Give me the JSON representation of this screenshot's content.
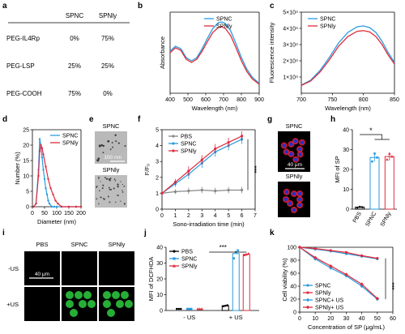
{
  "colors": {
    "spnc": "#2b9be0",
    "spnly": "#e02b3c",
    "pbs": "#888888",
    "black": "#000000",
    "ros_green": "#2ecc40",
    "nucleus_blue": "#2030d0",
    "cell_red": "#e0203a"
  },
  "panels": {
    "a": {
      "letter": "a",
      "header": [
        "",
        "SPNC",
        "SPNly"
      ],
      "rows": [
        {
          "name": "PEG-IL4Rp",
          "spnc": "0%",
          "spnly": "75%"
        },
        {
          "name": "PEG-LSP",
          "spnc": "25%",
          "spnly": "25%"
        },
        {
          "name": "PEG-COOH",
          "spnc": "75%",
          "spnly": "0%"
        }
      ]
    },
    "e": {
      "letter": "e",
      "label_top": "SPNC",
      "label_bottom": "SPNly",
      "scalebar": "100 nm"
    },
    "g": {
      "letter": "g",
      "label_top": "SPNC",
      "label_bottom": "SPNly",
      "scalebar": "40 μm"
    },
    "i": {
      "letter": "i",
      "cols": [
        "PBS",
        "SPNC",
        "SPNly"
      ],
      "rows": [
        "-US",
        "+US"
      ],
      "scalebar": "40 μm"
    }
  },
  "chart_data": [
    {
      "id": "b",
      "letter": "b",
      "type": "line",
      "xlabel": "Wavelength (nm)",
      "ylabel": "Absorbance",
      "xlim": [
        400,
        900
      ],
      "xticks": [
        400,
        500,
        600,
        700,
        800,
        900
      ],
      "ylim": [
        0,
        1
      ],
      "legend": "top-right",
      "series": [
        {
          "name": "SPNC",
          "color": "spnc",
          "x": [
            400,
            430,
            460,
            490,
            520,
            550,
            580,
            610,
            640,
            670,
            690,
            710,
            740,
            770,
            800,
            830,
            860,
            900
          ],
          "y": [
            0.52,
            0.58,
            0.55,
            0.44,
            0.4,
            0.44,
            0.55,
            0.68,
            0.8,
            0.87,
            0.88,
            0.86,
            0.77,
            0.61,
            0.44,
            0.3,
            0.2,
            0.12
          ]
        },
        {
          "name": "SPNly",
          "color": "spnly",
          "x": [
            400,
            430,
            460,
            490,
            520,
            550,
            580,
            610,
            640,
            670,
            690,
            710,
            740,
            770,
            800,
            830,
            860,
            900
          ],
          "y": [
            0.5,
            0.56,
            0.53,
            0.42,
            0.38,
            0.42,
            0.52,
            0.64,
            0.75,
            0.81,
            0.82,
            0.8,
            0.71,
            0.56,
            0.4,
            0.27,
            0.18,
            0.11
          ]
        }
      ]
    },
    {
      "id": "c",
      "letter": "c",
      "type": "line",
      "xlabel": "Wavelength (nm)",
      "ylabel": "Fluorescence intensity",
      "xlim": [
        700,
        850
      ],
      "xticks": [
        700,
        750,
        800,
        850
      ],
      "ylim": [
        0,
        50000
      ],
      "yticks": [
        10000,
        20000,
        30000,
        40000,
        50000
      ],
      "yticklabels": [
        "1×10⁴",
        "2×10⁴",
        "3×10⁴",
        "4×10⁴",
        "5×10⁴"
      ],
      "legend": "top-left",
      "series": [
        {
          "name": "SPNC",
          "color": "spnc",
          "x": [
            700,
            715,
            730,
            745,
            760,
            775,
            790,
            800,
            810,
            820,
            830,
            840,
            850
          ],
          "y": [
            5000,
            8000,
            14000,
            22000,
            31000,
            37500,
            41000,
            41500,
            40500,
            37500,
            32000,
            25000,
            19000
          ]
        },
        {
          "name": "SPNly",
          "color": "spnly",
          "x": [
            700,
            715,
            730,
            745,
            760,
            775,
            790,
            800,
            810,
            820,
            830,
            840,
            850
          ],
          "y": [
            4800,
            7500,
            13000,
            20500,
            29000,
            35000,
            38200,
            38600,
            37800,
            35000,
            30000,
            23500,
            18000
          ]
        }
      ]
    },
    {
      "id": "d",
      "letter": "d",
      "type": "line",
      "xlabel": "Diameter (nm)",
      "ylabel": "Number (%)",
      "xlim": [
        0,
        200
      ],
      "xticks": [
        0,
        50,
        100,
        150,
        200
      ],
      "ylim": [
        0,
        25
      ],
      "yticks": [
        0,
        5,
        10,
        15,
        20,
        25
      ],
      "legend": "top-right",
      "series": [
        {
          "name": "SPNC",
          "color": "spnc",
          "x": [
            5,
            15,
            25,
            30,
            35,
            40,
            45,
            50,
            55,
            60,
            65,
            70,
            80,
            90,
            100,
            120,
            150,
            180,
            200
          ],
          "y": [
            0,
            1,
            12,
            22,
            20,
            16,
            12,
            9,
            6,
            4,
            2,
            1,
            0,
            0,
            0,
            0,
            0,
            0,
            0
          ]
        },
        {
          "name": "SPNly",
          "color": "spnly",
          "x": [
            5,
            15,
            25,
            30,
            35,
            40,
            45,
            55,
            65,
            75,
            85,
            95,
            105,
            120,
            150,
            180,
            200
          ],
          "y": [
            0,
            1,
            10,
            18,
            20,
            19,
            17,
            13,
            9,
            6,
            4,
            2,
            1,
            0,
            0,
            0,
            0
          ]
        }
      ]
    },
    {
      "id": "f",
      "letter": "f",
      "type": "line",
      "xlabel": "Sono-irradiation time (min)",
      "ylabel": "F/F₀",
      "xlim": [
        0,
        7
      ],
      "xticks": [
        0,
        1,
        2,
        3,
        4,
        5,
        6,
        7
      ],
      "ylim": [
        0,
        5
      ],
      "yticks": [
        0,
        1,
        2,
        3,
        4,
        5
      ],
      "legend": "top-left",
      "annotation": "***",
      "series": [
        {
          "name": "PBS",
          "color": "pbs",
          "x": [
            0,
            1,
            2,
            3,
            4,
            5,
            6
          ],
          "y": [
            1.0,
            1.1,
            1.15,
            1.2,
            1.15,
            1.2,
            1.2
          ],
          "err": [
            0.1,
            0.15,
            0.2,
            0.2,
            0.2,
            0.2,
            0.2
          ]
        },
        {
          "name": "SPNC",
          "color": "spnc",
          "x": [
            0,
            1,
            2,
            3,
            4,
            5,
            6
          ],
          "y": [
            1.0,
            1.6,
            2.2,
            2.9,
            3.6,
            4.0,
            4.4
          ],
          "err": [
            0.1,
            0.2,
            0.3,
            0.3,
            0.3,
            0.3,
            0.3
          ]
        },
        {
          "name": "SPNly",
          "color": "spnly",
          "x": [
            0,
            1,
            2,
            3,
            4,
            5,
            6
          ],
          "y": [
            1.0,
            1.7,
            2.4,
            3.1,
            3.8,
            4.2,
            4.6
          ],
          "err": [
            0.1,
            0.2,
            0.3,
            0.3,
            0.3,
            0.3,
            0.3
          ]
        }
      ]
    },
    {
      "id": "h",
      "letter": "h",
      "type": "bar",
      "ylabel": "MFI of SP",
      "ylim": [
        0,
        40
      ],
      "yticks": [
        0,
        10,
        20,
        30,
        40
      ],
      "categories": [
        "PBS",
        "SPNC",
        "SPNly"
      ],
      "values": [
        1,
        26,
        26.5
      ],
      "err": [
        0.5,
        2,
        2
      ],
      "points": [
        [
          0.8,
          1.2,
          1.0
        ],
        [
          24,
          28,
          26
        ],
        [
          25,
          28,
          26.5
        ]
      ],
      "colors": [
        "black",
        "spnc",
        "spnly"
      ],
      "annotation": "*"
    },
    {
      "id": "j",
      "letter": "j",
      "type": "scatter",
      "ylabel": "MFI of DCFHDA",
      "ylim": [
        0,
        40
      ],
      "yticks": [
        0,
        10,
        20,
        30,
        40
      ],
      "categories": [
        "- US",
        "+ US"
      ],
      "legend": "top-left",
      "annotation": "***",
      "series": [
        {
          "name": "PBS",
          "color": "black",
          "marker": "circle",
          "values": [
            1,
            3
          ],
          "points": [
            [
              1,
              1,
              1
            ],
            [
              2.7,
              3,
              3.3
            ]
          ]
        },
        {
          "name": "SPNC",
          "color": "spnc",
          "marker": "square",
          "values": [
            1,
            36
          ],
          "points": [
            [
              1,
              1,
              1
            ],
            [
              33,
              37,
              38
            ]
          ]
        },
        {
          "name": "SPNly",
          "color": "spnly",
          "marker": "triangle",
          "values": [
            1,
            35.5
          ],
          "points": [
            [
              1,
              1,
              1
            ],
            [
              35,
              35.5,
              36
            ]
          ]
        }
      ]
    },
    {
      "id": "k",
      "letter": "k",
      "type": "line",
      "xlabel": "Concentration of SP (μg/mL)",
      "ylabel": "Cell viability (%)",
      "xlim": [
        0,
        60
      ],
      "xticks": [
        0,
        10,
        20,
        30,
        40,
        50,
        60
      ],
      "ylim": [
        0,
        100
      ],
      "yticks": [
        0,
        20,
        40,
        60,
        80,
        100
      ],
      "legend": "bottom-left",
      "annotation": "***",
      "series": [
        {
          "name": "SPNC",
          "color": "spnc",
          "marker": "circle",
          "x": [
            0,
            10,
            20,
            30,
            40,
            50
          ],
          "y": [
            100,
            97,
            94,
            90,
            86,
            82
          ]
        },
        {
          "name": "SPNly",
          "color": "spnly",
          "marker": "circle",
          "x": [
            0,
            10,
            20,
            30,
            40,
            50
          ],
          "y": [
            100,
            98,
            95,
            92,
            87,
            83
          ]
        },
        {
          "name": "SPNC+ US",
          "color": "spnc",
          "marker": "diamond",
          "x": [
            0,
            10,
            20,
            30,
            40,
            50
          ],
          "y": [
            100,
            82,
            68,
            56,
            40,
            20
          ]
        },
        {
          "name": "SPNly+ US",
          "color": "spnly",
          "marker": "diamond",
          "x": [
            0,
            10,
            20,
            30,
            40,
            50
          ],
          "y": [
            100,
            84,
            71,
            58,
            43,
            21
          ]
        }
      ]
    }
  ]
}
